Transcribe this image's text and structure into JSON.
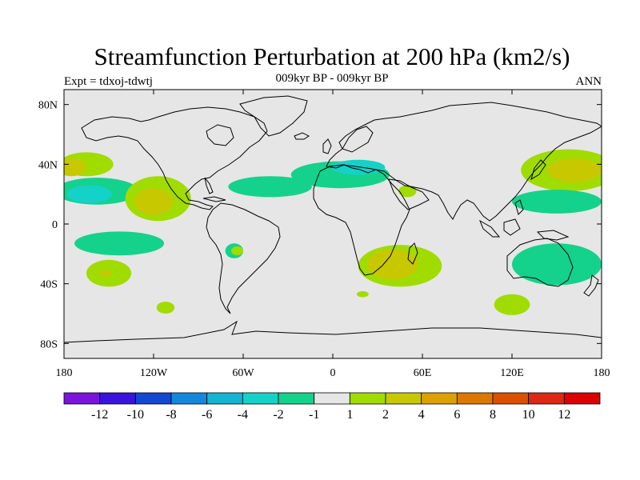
{
  "chart_data": {
    "type": "contour-map",
    "title": "Streamfunction Perturbation at 200 hPa (km2/s)",
    "subtitle": "009kyr BP - 009kyr BP",
    "left_label": "Expt = tdxoj-tdwtj",
    "right_label": "ANN",
    "x_ticks": [
      {
        "label": "180",
        "lon": -180
      },
      {
        "label": "120W",
        "lon": -120
      },
      {
        "label": "60W",
        "lon": -60
      },
      {
        "label": "0",
        "lon": 0
      },
      {
        "label": "60E",
        "lon": 60
      },
      {
        "label": "120E",
        "lon": 120
      },
      {
        "label": "180",
        "lon": 180
      }
    ],
    "y_ticks": [
      {
        "label": "80N",
        "lat": 80
      },
      {
        "label": "40N",
        "lat": 40
      },
      {
        "label": "0",
        "lat": 0
      },
      {
        "label": "40S",
        "lat": -40
      },
      {
        "label": "80S",
        "lat": -80
      }
    ],
    "xlim": [
      -180,
      180
    ],
    "ylim": [
      -90,
      90
    ],
    "colorbar": {
      "colors": [
        "#7b14dc",
        "#3a14dc",
        "#1448d2",
        "#1488dc",
        "#14b4d2",
        "#14d2c8",
        "#14d28c",
        "#e6e6e6",
        "#a0dc00",
        "#c8c800",
        "#dca000",
        "#dc7800",
        "#dc5000",
        "#dc2814",
        "#dc0000"
      ],
      "labels": [
        "-12",
        "-10",
        "-8",
        "-6",
        "-4",
        "-2",
        "-1",
        "1",
        "2",
        "4",
        "6",
        "8",
        "10",
        "12"
      ]
    },
    "regions": [
      {
        "lon": -165,
        "lat": 40,
        "rx": 18,
        "ry": 8,
        "level": 2
      },
      {
        "lon": -175,
        "lat": 38,
        "rx": 10,
        "ry": 6,
        "level": 4
      },
      {
        "lon": -158,
        "lat": 22,
        "rx": 28,
        "ry": 9,
        "level": -2
      },
      {
        "lon": -163,
        "lat": 20,
        "rx": 15,
        "ry": 6,
        "level": -4
      },
      {
        "lon": -117,
        "lat": 17,
        "rx": 22,
        "ry": 15,
        "level": 2
      },
      {
        "lon": -120,
        "lat": 15,
        "rx": 13,
        "ry": 9,
        "level": 4
      },
      {
        "lon": -42,
        "lat": 25,
        "rx": 28,
        "ry": 7,
        "level": -2
      },
      {
        "lon": -143,
        "lat": -13,
        "rx": 30,
        "ry": 8,
        "level": -2
      },
      {
        "lon": -150,
        "lat": -33,
        "rx": 15,
        "ry": 9,
        "level": 2
      },
      {
        "lon": -152,
        "lat": -33,
        "rx": 4,
        "ry": 2,
        "level": 4
      },
      {
        "lon": -66,
        "lat": -18,
        "rx": 6,
        "ry": 5,
        "level": -2
      },
      {
        "lon": -64,
        "lat": -18,
        "rx": 4,
        "ry": 3,
        "level": 2
      },
      {
        "lon": -112,
        "lat": -56,
        "rx": 6,
        "ry": 4,
        "level": 2
      },
      {
        "lon": 5,
        "lat": 33,
        "rx": 33,
        "ry": 9,
        "level": -2
      },
      {
        "lon": 17,
        "lat": 38,
        "rx": 18,
        "ry": 5,
        "level": -4
      },
      {
        "lon": 50,
        "lat": 22,
        "rx": 6,
        "ry": 4,
        "level": 2
      },
      {
        "lon": 45,
        "lat": -28,
        "rx": 28,
        "ry": 14,
        "level": 2
      },
      {
        "lon": 40,
        "lat": -27,
        "rx": 17,
        "ry": 10,
        "level": 4
      },
      {
        "lon": 20,
        "lat": -47,
        "rx": 4,
        "ry": 2,
        "level": 2
      },
      {
        "lon": 158,
        "lat": 36,
        "rx": 32,
        "ry": 14,
        "level": 2
      },
      {
        "lon": 162,
        "lat": 36,
        "rx": 18,
        "ry": 8,
        "level": 4
      },
      {
        "lon": 150,
        "lat": 15,
        "rx": 30,
        "ry": 8,
        "level": -2
      },
      {
        "lon": 150,
        "lat": -27,
        "rx": 30,
        "ry": 14,
        "level": -2
      },
      {
        "lon": 120,
        "lat": -54,
        "rx": 12,
        "ry": 7,
        "level": 2
      }
    ],
    "level_to_color_index": {
      "-4": 5,
      "-2": 6,
      "2": 8,
      "4": 9
    }
  }
}
